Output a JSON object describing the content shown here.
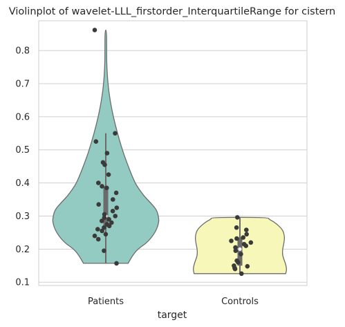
{
  "chart_data": {
    "type": "violin",
    "title": "Violinplot of wavelet-LLL_firstorder_InterquartileRange for cistern",
    "xlabel": "target",
    "ylabel": "",
    "categories": [
      "Patients",
      "Controls"
    ],
    "ylim": [
      0.09,
      0.89
    ],
    "yticks": [
      0.1,
      0.2,
      0.3,
      0.4,
      0.5,
      0.6,
      0.7,
      0.8
    ],
    "ytick_labels": [
      "0.1",
      "0.2",
      "0.3",
      "0.4",
      "0.5",
      "0.6",
      "0.7",
      "0.8"
    ],
    "grid": true,
    "colors": {
      "Patients": "#93cbc3",
      "Controls": "#f7f7b9",
      "points": "#3a3a3a",
      "outline": "#6b6b6b",
      "box": "#6b6b6b",
      "grid": "#cfcfcf"
    },
    "violins": [
      {
        "category": "Patients",
        "min": 0.157,
        "max": 0.862,
        "q1": 0.267,
        "median": 0.3,
        "q3": 0.39,
        "whisker_low": 0.157,
        "whisker_high": 0.55,
        "density": [
          [
            0.157,
            0.42
          ],
          [
            0.18,
            0.5
          ],
          [
            0.2,
            0.6
          ],
          [
            0.22,
            0.78
          ],
          [
            0.25,
            0.93
          ],
          [
            0.28,
            1.0
          ],
          [
            0.3,
            0.99
          ],
          [
            0.32,
            0.95
          ],
          [
            0.34,
            0.84
          ],
          [
            0.36,
            0.72
          ],
          [
            0.38,
            0.63
          ],
          [
            0.4,
            0.55
          ],
          [
            0.43,
            0.47
          ],
          [
            0.46,
            0.4
          ],
          [
            0.5,
            0.31
          ],
          [
            0.55,
            0.22
          ],
          [
            0.6,
            0.14
          ],
          [
            0.65,
            0.08
          ],
          [
            0.7,
            0.04
          ],
          [
            0.75,
            0.02
          ],
          [
            0.8,
            0.015
          ],
          [
            0.862,
            0.015
          ]
        ],
        "points": [
          0.862,
          0.55,
          0.525,
          0.49,
          0.462,
          0.455,
          0.425,
          0.4,
          0.39,
          0.385,
          0.37,
          0.35,
          0.335,
          0.325,
          0.315,
          0.305,
          0.3,
          0.295,
          0.29,
          0.285,
          0.28,
          0.275,
          0.27,
          0.265,
          0.26,
          0.255,
          0.245,
          0.24,
          0.23,
          0.195,
          0.157
        ]
      },
      {
        "category": "Controls",
        "min": 0.126,
        "max": 0.296,
        "q1": 0.15,
        "median": 0.2,
        "q3": 0.235,
        "whisker_low": 0.126,
        "whisker_high": 0.296,
        "density": [
          [
            0.126,
            0.86
          ],
          [
            0.14,
            0.88
          ],
          [
            0.16,
            0.85
          ],
          [
            0.18,
            0.8
          ],
          [
            0.2,
            0.8
          ],
          [
            0.22,
            0.83
          ],
          [
            0.24,
            0.84
          ],
          [
            0.26,
            0.8
          ],
          [
            0.28,
            0.66
          ],
          [
            0.29,
            0.55
          ],
          [
            0.296,
            0.52
          ]
        ],
        "points": [
          0.296,
          0.265,
          0.258,
          0.245,
          0.235,
          0.232,
          0.225,
          0.22,
          0.215,
          0.21,
          0.205,
          0.195,
          0.185,
          0.165,
          0.16,
          0.15,
          0.148,
          0.143,
          0.14,
          0.126
        ]
      }
    ]
  }
}
